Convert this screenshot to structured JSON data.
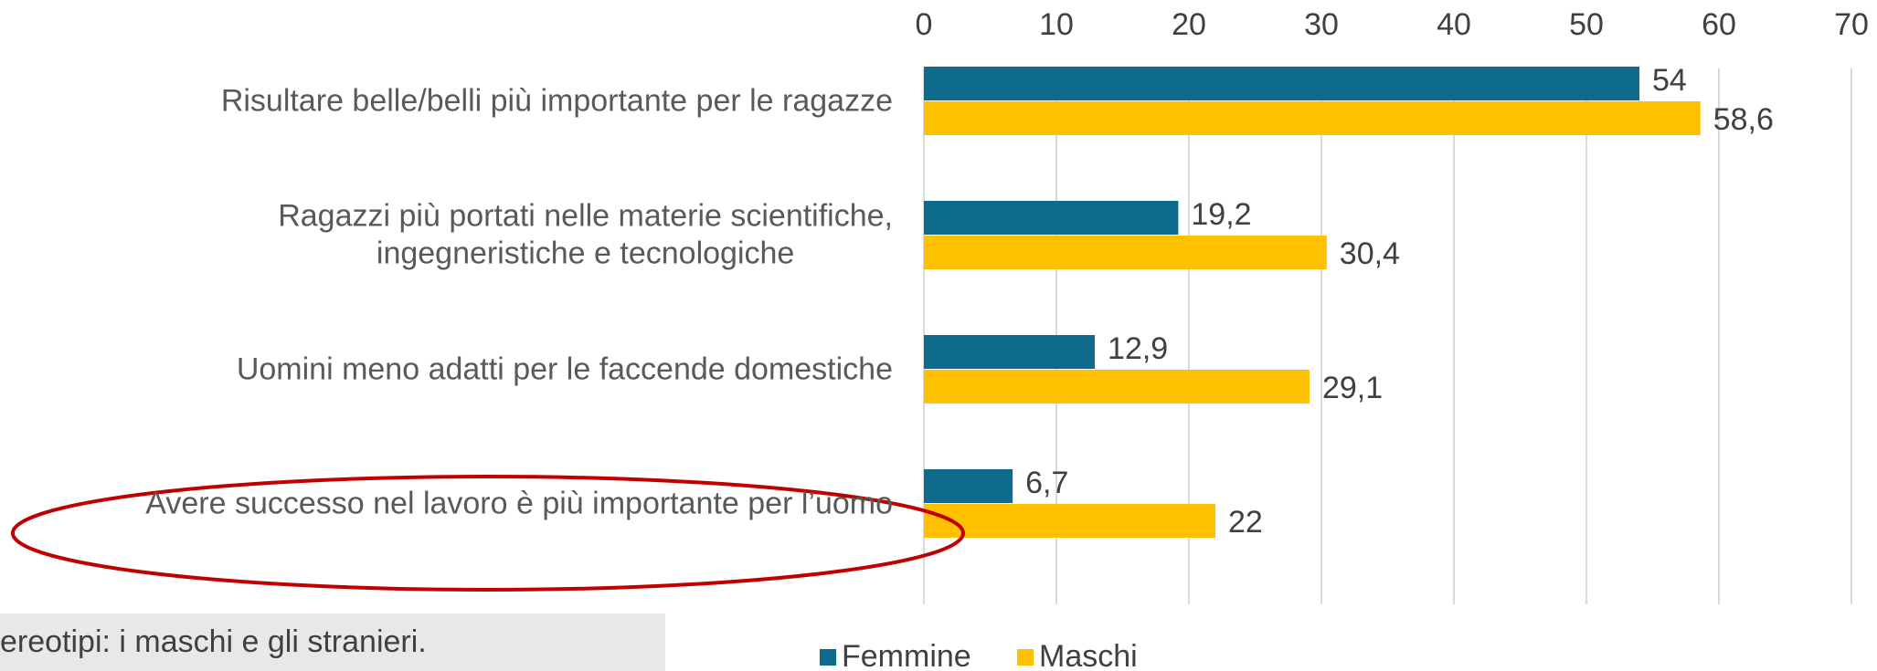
{
  "chart_data": {
    "type": "bar",
    "orientation": "horizontal",
    "categories": [
      "Risultare belle/belli più importante per le ragazze",
      "Ragazzi più portati nelle materie scientifiche,\ningegneristiche e tecnologiche",
      "Uomini meno adatti per le faccende domestiche",
      "Avere successo nel lavoro è più importante per l’uomo"
    ],
    "series": [
      {
        "name": "Femmine",
        "color": "#0e6b8c",
        "values": [
          54,
          19.2,
          12.9,
          6.7
        ],
        "value_labels": [
          "54",
          "19,2",
          "12,9",
          "6,7"
        ]
      },
      {
        "name": "Maschi",
        "color": "#ffc000",
        "values": [
          58.6,
          30.4,
          29.1,
          22
        ],
        "value_labels": [
          "58,6",
          "30,4",
          "29,1",
          "22"
        ]
      }
    ],
    "xlim": [
      0,
      70
    ],
    "xticks": [
      0,
      10,
      20,
      30,
      40,
      50,
      60,
      70
    ],
    "grid": true,
    "legend": "bottom",
    "footer_text": "ereotipi: i maschi e gli stranieri."
  }
}
